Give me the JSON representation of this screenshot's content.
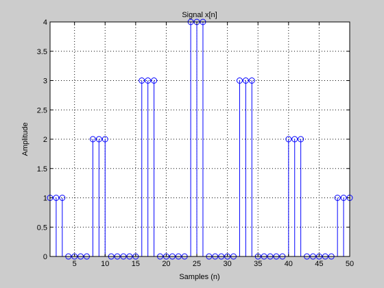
{
  "chart_data": {
    "type": "stem",
    "title": "Signal x[n]",
    "xlabel": "Samples (n)",
    "ylabel": "Amplitude",
    "xlim": [
      1,
      50
    ],
    "ylim": [
      0,
      4
    ],
    "grid": true,
    "x_ticks": [
      5,
      10,
      15,
      20,
      25,
      30,
      35,
      40,
      45,
      50
    ],
    "y_ticks": [
      0,
      0.5,
      1,
      1.5,
      2,
      2.5,
      3,
      3.5,
      4
    ],
    "y_tick_labels": [
      "0",
      "0.5",
      "1",
      "1.5",
      "2",
      "2.5",
      "3",
      "3.5",
      "4"
    ],
    "colors": {
      "stem": "#0000ff",
      "plot_bg": "#ffffff",
      "figure_bg": "#cccccc",
      "grid": "#000000"
    },
    "series": [
      {
        "x": [
          1,
          2,
          3,
          4,
          5,
          6,
          7,
          8,
          9,
          10,
          11,
          12,
          13,
          14,
          15,
          16,
          17,
          18,
          19,
          20,
          21,
          22,
          23,
          24,
          25,
          26,
          27,
          28,
          29,
          30,
          31,
          32,
          33,
          34,
          35,
          36,
          37,
          38,
          39,
          40,
          41,
          42,
          43,
          44,
          45,
          46,
          47,
          48,
          49,
          50
        ],
        "y": [
          1,
          1,
          1,
          0,
          0,
          0,
          0,
          2,
          2,
          2,
          0,
          0,
          0,
          0,
          0,
          3,
          3,
          3,
          0,
          0,
          0,
          0,
          0,
          4,
          4,
          4,
          0,
          0,
          0,
          0,
          0,
          3,
          3,
          3,
          0,
          0,
          0,
          0,
          0,
          2,
          2,
          2,
          0,
          0,
          0,
          0,
          0,
          1,
          1,
          1
        ]
      }
    ]
  }
}
